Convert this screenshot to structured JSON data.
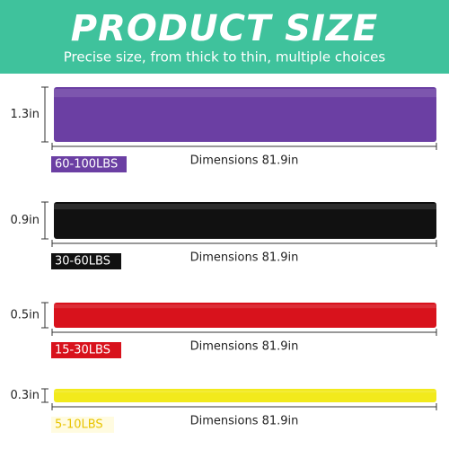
{
  "header": {
    "title": "PRODUCT SIZE",
    "subtitle": "Precise size, from thick to thin, multiple choices"
  },
  "bands": [
    {
      "thickness": "1.3in",
      "resistance": "60-100LBS",
      "dimensions": "Dimensions 81.9in"
    },
    {
      "thickness": "0.9in",
      "resistance": "30-60LBS",
      "dimensions": "Dimensions 81.9in"
    },
    {
      "thickness": "0.5in",
      "resistance": "15-30LBS",
      "dimensions": "Dimensions 81.9in"
    },
    {
      "thickness": "0.3in",
      "resistance": "5-10LBS",
      "dimensions": "Dimensions 81.9in"
    }
  ]
}
